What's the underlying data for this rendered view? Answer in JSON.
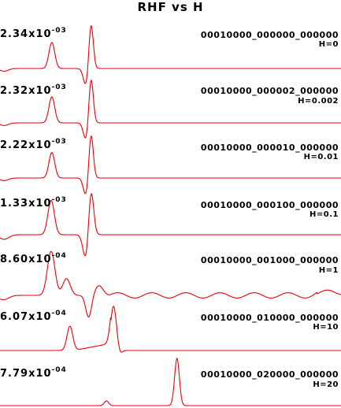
{
  "chart_data": {
    "type": "line",
    "title": "RHF vs H",
    "line_color": "#e8000b",
    "panels": [
      {
        "amplitude_mantissa": "2.34x10",
        "amplitude_exponent": "-03",
        "code": "00010000_000000_000000",
        "h_label": "H=0",
        "features": [
          {
            "kind": "gauss",
            "x": 0.152,
            "width": 0.0085,
            "amp": 0.58
          },
          {
            "kind": "gauss",
            "x": 0.252,
            "width": 0.0075,
            "amp": -0.38
          },
          {
            "kind": "gauss",
            "x": 0.267,
            "width": 0.0065,
            "amp": 1.0
          },
          {
            "kind": "gauss",
            "x": 0.012,
            "width": 0.012,
            "amp": -0.06
          }
        ]
      },
      {
        "amplitude_mantissa": "2.32x10",
        "amplitude_exponent": "-03",
        "code": "00010000_000002_000000",
        "h_label": "H=0.002",
        "features": [
          {
            "kind": "gauss",
            "x": 0.152,
            "width": 0.0085,
            "amp": 0.58
          },
          {
            "kind": "gauss",
            "x": 0.252,
            "width": 0.0075,
            "amp": -0.38
          },
          {
            "kind": "gauss",
            "x": 0.267,
            "width": 0.0065,
            "amp": 1.0
          },
          {
            "kind": "gauss",
            "x": 0.012,
            "width": 0.012,
            "amp": -0.06
          }
        ]
      },
      {
        "amplitude_mantissa": "2.22x10",
        "amplitude_exponent": "-03",
        "code": "00010000_000010_000000",
        "h_label": "H=0.01",
        "features": [
          {
            "kind": "gauss",
            "x": 0.152,
            "width": 0.0085,
            "amp": 0.58
          },
          {
            "kind": "gauss",
            "x": 0.252,
            "width": 0.0075,
            "amp": -0.4
          },
          {
            "kind": "gauss",
            "x": 0.267,
            "width": 0.0065,
            "amp": 1.0
          },
          {
            "kind": "gauss",
            "x": 0.012,
            "width": 0.012,
            "amp": -0.06
          }
        ]
      },
      {
        "amplitude_mantissa": "1.33x10",
        "amplitude_exponent": "-03",
        "code": "00010000_000100_000000",
        "h_label": "H=0.1",
        "features": [
          {
            "kind": "gauss",
            "x": 0.15,
            "width": 0.0095,
            "amp": 0.75
          },
          {
            "kind": "gauss",
            "x": 0.252,
            "width": 0.0085,
            "amp": -0.55
          },
          {
            "kind": "gauss",
            "x": 0.267,
            "width": 0.0075,
            "amp": 1.0
          },
          {
            "kind": "gauss",
            "x": 0.012,
            "width": 0.014,
            "amp": -0.1
          }
        ]
      },
      {
        "amplitude_mantissa": "8.60x10",
        "amplitude_exponent": "-04",
        "code": "00010000_001000_000000",
        "h_label": "H=1",
        "features": [
          {
            "kind": "gauss",
            "x": 0.15,
            "width": 0.011,
            "amp": 1.0
          },
          {
            "kind": "gauss",
            "x": 0.195,
            "width": 0.011,
            "amp": 0.38
          },
          {
            "kind": "gauss",
            "x": 0.26,
            "width": 0.0085,
            "amp": -0.5
          },
          {
            "kind": "gauss",
            "x": 0.29,
            "width": 0.012,
            "amp": 0.22
          },
          {
            "kind": "wiggle",
            "x_start": 0.32,
            "x_end": 0.93,
            "amp": 0.06,
            "period": 0.1
          },
          {
            "kind": "gauss",
            "x": 0.96,
            "width": 0.02,
            "amp": 0.12
          },
          {
            "kind": "gauss",
            "x": 0.01,
            "width": 0.015,
            "amp": -0.1
          }
        ]
      },
      {
        "amplitude_mantissa": "6.07x10",
        "amplitude_exponent": "-04",
        "code": "00010000_010000_000000",
        "h_label": "H=10",
        "features": [
          {
            "kind": "gauss",
            "x": 0.205,
            "width": 0.0085,
            "amp": 0.55
          },
          {
            "kind": "ramp",
            "x_start": 0.215,
            "x_end": 0.325,
            "amp": 0.16
          },
          {
            "kind": "gauss",
            "x": 0.333,
            "width": 0.0085,
            "amp": 1.0
          },
          {
            "kind": "gauss",
            "x": 0.352,
            "width": 0.006,
            "amp": -0.08
          }
        ]
      },
      {
        "amplitude_mantissa": "7.79x10",
        "amplitude_exponent": "-04",
        "code": "00010000_020000_000000",
        "h_label": "H=20",
        "features": [
          {
            "kind": "gauss",
            "x": 0.312,
            "width": 0.0065,
            "amp": 0.1
          },
          {
            "kind": "gauss",
            "x": 0.519,
            "width": 0.007,
            "amp": 1.0
          }
        ]
      }
    ]
  }
}
